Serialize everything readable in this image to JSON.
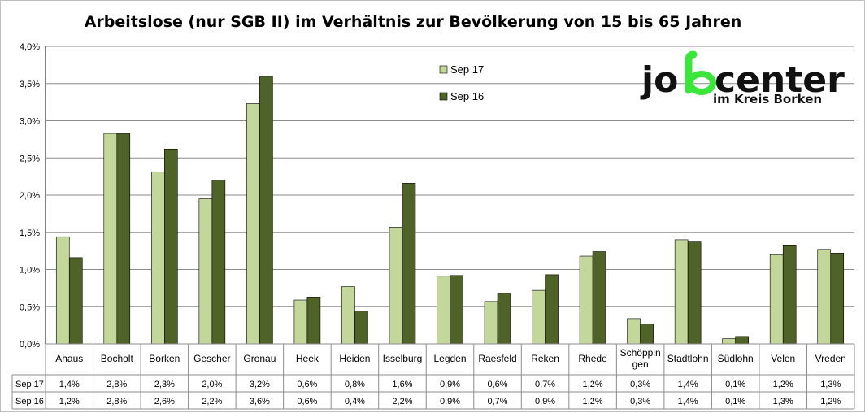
{
  "chart_data": {
    "type": "bar",
    "title": "Arbeitslose (nur SGB II) im Verhältnis zur Bevölkerung von 15 bis 65 Jahren",
    "categories": [
      "Ahaus",
      "Bocholt",
      "Borken",
      "Gescher",
      "Gronau",
      "Heek",
      "Heiden",
      "Isselburg",
      "Legden",
      "Raesfeld",
      "Reken",
      "Rhede",
      "Schöppin gen",
      "Stadtlohn",
      "Südlohn",
      "Velen",
      "Vreden"
    ],
    "series": [
      {
        "name": "Sep 17",
        "color": "#c4d79b",
        "values": [
          1.44,
          2.83,
          2.31,
          1.95,
          3.23,
          0.59,
          0.77,
          1.57,
          0.91,
          0.57,
          0.72,
          1.18,
          0.34,
          1.4,
          0.07,
          1.2,
          1.27
        ],
        "labels": [
          "1,4%",
          "2,8%",
          "2,3%",
          "2,0%",
          "3,2%",
          "0,6%",
          "0,8%",
          "1,6%",
          "0,9%",
          "0,6%",
          "0,7%",
          "1,2%",
          "0,3%",
          "1,4%",
          "0,1%",
          "1,2%",
          "1,3%"
        ]
      },
      {
        "name": "Sep 16",
        "color": "#4f6228",
        "values": [
          1.16,
          2.83,
          2.62,
          2.2,
          3.59,
          0.63,
          0.44,
          2.16,
          0.92,
          0.68,
          0.93,
          1.24,
          0.27,
          1.37,
          0.1,
          1.33,
          1.22
        ],
        "labels": [
          "1,2%",
          "2,8%",
          "2,6%",
          "2,2%",
          "3,6%",
          "0,6%",
          "0,4%",
          "2,2%",
          "0,9%",
          "0,7%",
          "0,9%",
          "1,2%",
          "0,3%",
          "1,4%",
          "0,1%",
          "1,3%",
          "1,2%"
        ]
      }
    ],
    "ylim": [
      0,
      4
    ],
    "yticks": [
      "0,0%",
      "0,5%",
      "1,0%",
      "1,5%",
      "2,0%",
      "2,5%",
      "3,0%",
      "3,5%",
      "4,0%"
    ],
    "grid": true,
    "legend_position": "top-center",
    "data_table": true
  },
  "logo": {
    "main_left": "jo",
    "main_right": "center",
    "sub": "im Kreis Borken",
    "accent_color": "#39e639"
  }
}
